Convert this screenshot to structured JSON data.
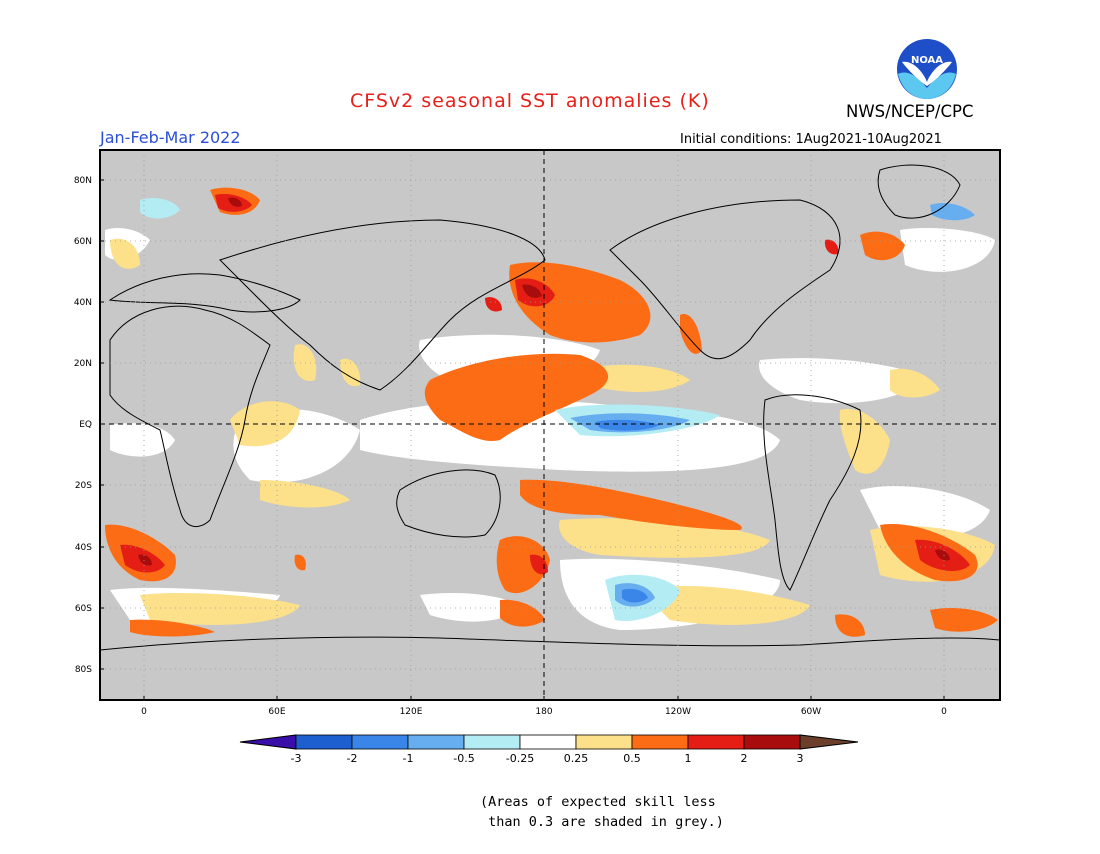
{
  "title": "CFSv2 seasonal SST anomalies (K)",
  "season": "Jan-Feb-Mar 2022",
  "organization": "NWS/NCEP/CPC",
  "logo_text": "NOAA",
  "initial_conditions": "Initial conditions: 1Aug2021-10Aug2021",
  "colors": {
    "title": "#e8201a",
    "season": "#2b4fd6",
    "land": "#c8c8c8",
    "ocean_neutral": "#ffffff",
    "frame": "#000000"
  },
  "lat_labels": [
    "80N",
    "60N",
    "40N",
    "20N",
    "EQ",
    "20S",
    "40S",
    "60S",
    "80S"
  ],
  "lon_labels": [
    "0",
    "60E",
    "120E",
    "180",
    "120W",
    "60W",
    "0"
  ],
  "colorbar": {
    "labels": [
      "-3",
      "-2",
      "-1",
      "-0.5",
      "-0.25",
      "0.25",
      "0.5",
      "1",
      "2",
      "3"
    ],
    "colors": [
      "#3a0ea8",
      "#1e5fd0",
      "#3a86e8",
      "#66aef0",
      "#b4ecf4",
      "#ffffff",
      "#fce08a",
      "#fc6c14",
      "#e41e14",
      "#a80c0c",
      "#6b3f2a"
    ]
  },
  "note": "(Areas of expected skill less\n than 0.3 are shaded in grey.)"
}
